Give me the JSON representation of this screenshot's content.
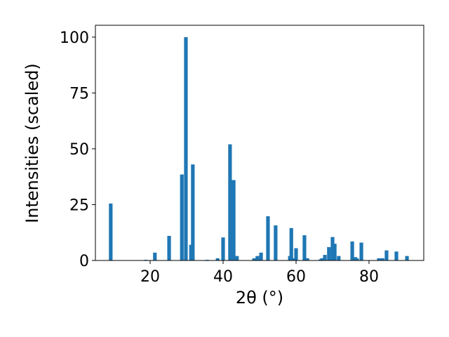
{
  "chart_data": {
    "type": "bar",
    "x_label": "2θ (°)",
    "y_label": "Intensities (scaled)",
    "x": [
      9.2,
      18.8,
      21.3,
      25.2,
      28.7,
      29.8,
      31.2,
      31.7,
      35.6,
      38.5,
      40.0,
      41.9,
      42.9,
      43.8,
      48.5,
      49.4,
      50.4,
      52.3,
      54.4,
      58.3,
      58.7,
      59.2,
      60.0,
      62.3,
      63.1,
      66.7,
      67.1,
      67.9,
      69.0,
      70.0,
      70.6,
      71.7,
      75.4,
      76.2,
      76.7,
      77.9,
      82.7,
      83.7,
      84.8,
      87.5,
      90.4
    ],
    "values": [
      25.5,
      0.3,
      3.5,
      11,
      38.5,
      100,
      7,
      43,
      0.3,
      1,
      10.3,
      52,
      36,
      2,
      1,
      2,
      3.5,
      19.8,
      15.7,
      2,
      14.5,
      1,
      5.5,
      11.3,
      1,
      0.5,
      1,
      2.5,
      6,
      10.5,
      7.5,
      2,
      8.5,
      1.5,
      1,
      8,
      1,
      1,
      4.5,
      4,
      2
    ],
    "color": "#1f77b4",
    "xlim": [
      5,
      95
    ],
    "ylim": [
      0,
      105.3
    ],
    "xticks": [
      20,
      40,
      60,
      80
    ],
    "yticks": [
      0,
      25,
      50,
      75,
      100
    ],
    "grid": false
  }
}
